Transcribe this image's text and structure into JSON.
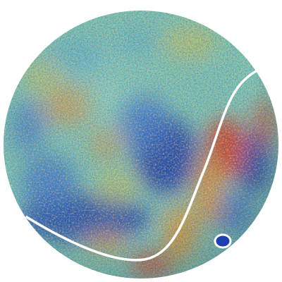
{
  "image": {
    "subject": "cmb-temperature-map-sphere",
    "background_color": "#ffffff",
    "palette": {
      "cold_deep": "#1e3fb0",
      "cold": "#3a78d8",
      "cool": "#58b8d8",
      "neutral": "#7fd0c0",
      "warm_light": "#d8d060",
      "warm": "#e89a3a",
      "hot": "#e0452a"
    },
    "overlay": {
      "boundary_curve_color": "#ffffff",
      "ring_marker_color": "#ffffff"
    }
  }
}
